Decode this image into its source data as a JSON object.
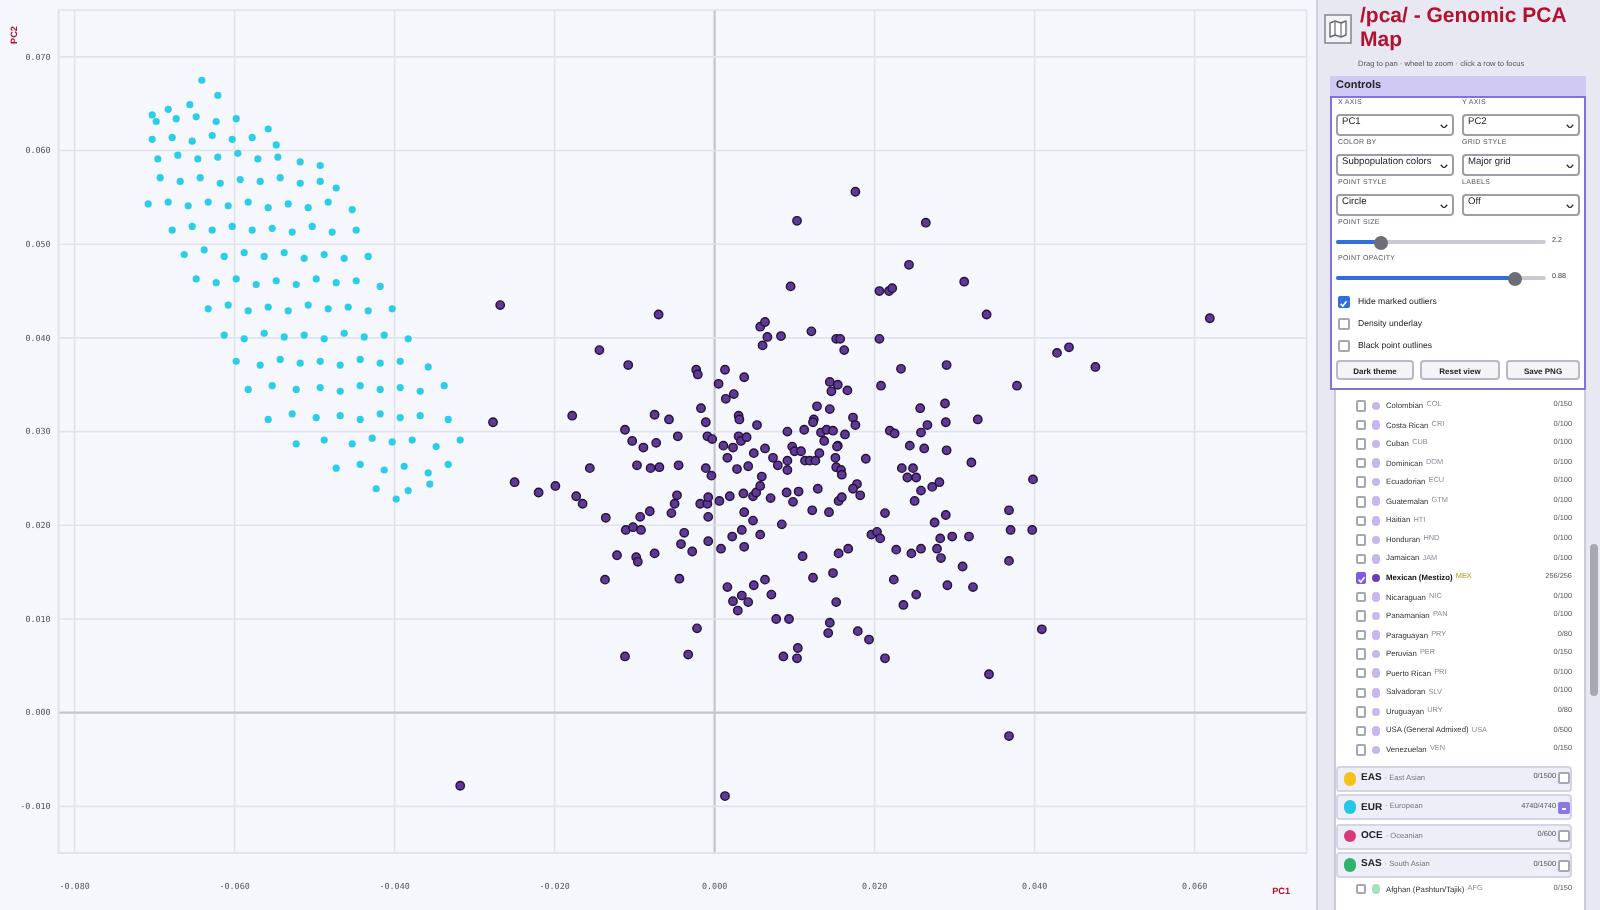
{
  "chart_data": [
    {
      "type": "scatter",
      "xlabel": "PC1",
      "ylabel": "PC2",
      "xlim": [
        -0.082,
        0.074
      ],
      "ylim": [
        -0.015,
        0.075
      ],
      "xticks": [
        {
          "value": -0.08,
          "label": "-0.080"
        },
        {
          "value": -0.06,
          "label": "-0.060"
        },
        {
          "value": -0.04,
          "label": "-0.040"
        },
        {
          "value": -0.02,
          "label": "-0.020"
        },
        {
          "value": 0,
          "label": "0.000"
        },
        {
          "value": 0.02,
          "label": "0.020"
        },
        {
          "value": 0.04,
          "label": "0.040"
        },
        {
          "value": 0.06,
          "label": "0.060"
        }
      ],
      "yticks": [
        {
          "value": -0.01,
          "label": "-0.010"
        },
        {
          "value": 0,
          "label": "0.000"
        },
        {
          "value": 0.01,
          "label": "0.010"
        },
        {
          "value": 0.02,
          "label": "0.020"
        },
        {
          "value": 0.03,
          "label": "0.030"
        },
        {
          "value": 0.04,
          "label": "0.040"
        },
        {
          "value": 0.05,
          "label": "0.050"
        },
        {
          "value": 0.06,
          "label": "0.060"
        },
        {
          "value": 0.07,
          "label": "0.070"
        }
      ],
      "grid": true,
      "marker": "circle",
      "series": [
        {
          "color": "#2ccde8",
          "x": [
            -0.0641,
            -0.0621,
            -0.0683,
            -0.0656,
            -0.0703,
            -0.0698,
            -0.0673,
            -0.0648,
            -0.0623,
            -0.0598,
            -0.0558,
            -0.0703,
            -0.0678,
            -0.0653,
            -0.0628,
            -0.0603,
            -0.0578,
            -0.0548,
            -0.0696,
            -0.0671,
            -0.0646,
            -0.0621,
            -0.0596,
            -0.0571,
            -0.0546,
            -0.0518,
            -0.0493,
            -0.0693,
            -0.0668,
            -0.0643,
            -0.0618,
            -0.0593,
            -0.0568,
            -0.0543,
            -0.0518,
            -0.0493,
            -0.0473,
            -0.0708,
            -0.0683,
            -0.0658,
            -0.0633,
            -0.0608,
            -0.0583,
            -0.0558,
            -0.0533,
            -0.0508,
            -0.0483,
            -0.0453,
            -0.0678,
            -0.0653,
            -0.0628,
            -0.0603,
            -0.0578,
            -0.0553,
            -0.0528,
            -0.0503,
            -0.0478,
            -0.0448,
            -0.0663,
            -0.0638,
            -0.0613,
            -0.0588,
            -0.0563,
            -0.0538,
            -0.0513,
            -0.0488,
            -0.0463,
            -0.0433,
            -0.0648,
            -0.0623,
            -0.0598,
            -0.0573,
            -0.0548,
            -0.0523,
            -0.0498,
            -0.0473,
            -0.0448,
            -0.0418,
            -0.0633,
            -0.0608,
            -0.0583,
            -0.0558,
            -0.0533,
            -0.0508,
            -0.0483,
            -0.0458,
            -0.0433,
            -0.0403,
            -0.0613,
            -0.0588,
            -0.0563,
            -0.0538,
            -0.0513,
            -0.0488,
            -0.0463,
            -0.0438,
            -0.0413,
            -0.0383,
            -0.0598,
            -0.0568,
            -0.0543,
            -0.0518,
            -0.0493,
            -0.0468,
            -0.0443,
            -0.0418,
            -0.0393,
            -0.0358,
            -0.0583,
            -0.0553,
            -0.0523,
            -0.0493,
            -0.0468,
            -0.0443,
            -0.0418,
            -0.0393,
            -0.0368,
            -0.0338,
            -0.0558,
            -0.0528,
            -0.0498,
            -0.0468,
            -0.0443,
            -0.0418,
            -0.0393,
            -0.0368,
            -0.0333,
            -0.0523,
            -0.0488,
            -0.0453,
            -0.0428,
            -0.0403,
            -0.0378,
            -0.0348,
            -0.0318,
            -0.0473,
            -0.0443,
            -0.0413,
            -0.0388,
            -0.0358,
            -0.0333,
            -0.0423,
            -0.0383,
            -0.0356,
            -0.0398
          ],
          "values": [
            0.0675,
            0.0659,
            0.0644,
            0.0649,
            0.0638,
            0.0631,
            0.0634,
            0.0636,
            0.0631,
            0.0634,
            0.0623,
            0.0612,
            0.0614,
            0.061,
            0.0616,
            0.0612,
            0.0614,
            0.0606,
            0.0591,
            0.0595,
            0.0591,
            0.0593,
            0.0597,
            0.0591,
            0.0593,
            0.0588,
            0.0584,
            0.0571,
            0.0567,
            0.0571,
            0.0565,
            0.0569,
            0.0567,
            0.0571,
            0.0565,
            0.0567,
            0.056,
            0.0543,
            0.0545,
            0.0541,
            0.0545,
            0.0541,
            0.0545,
            0.0539,
            0.0543,
            0.0539,
            0.0545,
            0.0537,
            0.0515,
            0.0519,
            0.0515,
            0.0519,
            0.0515,
            0.0517,
            0.0513,
            0.0519,
            0.0513,
            0.0515,
            0.0489,
            0.0494,
            0.0487,
            0.0491,
            0.0487,
            0.0491,
            0.0485,
            0.0489,
            0.0485,
            0.0487,
            0.0463,
            0.0459,
            0.0463,
            0.0457,
            0.0461,
            0.0457,
            0.0463,
            0.0459,
            0.0461,
            0.0455,
            0.0431,
            0.0435,
            0.0429,
            0.0433,
            0.0429,
            0.0435,
            0.0431,
            0.0433,
            0.0429,
            0.0431,
            0.0403,
            0.0399,
            0.0405,
            0.0401,
            0.0403,
            0.0399,
            0.0405,
            0.0401,
            0.0403,
            0.0399,
            0.0375,
            0.0371,
            0.0377,
            0.0373,
            0.0375,
            0.0371,
            0.0377,
            0.0373,
            0.0375,
            0.0369,
            0.0345,
            0.0349,
            0.0345,
            0.0347,
            0.0343,
            0.0349,
            0.0345,
            0.0347,
            0.0343,
            0.0349,
            0.0313,
            0.0319,
            0.0315,
            0.0317,
            0.0313,
            0.0319,
            0.0315,
            0.0317,
            0.0313,
            0.0287,
            0.0291,
            0.0287,
            0.0293,
            0.0289,
            0.0291,
            0.0284,
            0.0291,
            0.0261,
            0.0265,
            0.0259,
            0.0263,
            0.0256,
            0.0265,
            0.0239,
            0.0237,
            0.0244,
            0.0228
          ]
        },
        {
          "color": "#5e3a94",
          "x": [
            0.0176,
            0.0103,
            0.0264,
            0.0243,
            0.0095,
            0.0312,
            0.0206,
            0.0218,
            0.0222,
            0.034,
            -0.0268,
            -0.007,
            0.0619,
            0.0057,
            0.0063,
            0.0066,
            0.0083,
            0.006,
            0.0121,
            0.0152,
            0.0157,
            0.0162,
            0.0206,
            -0.0144,
            -0.0108,
            0.0428,
            0.0443,
            0.0476,
            -0.0023,
            -0.0021,
            0.0013,
            0.0037,
            0.0005,
            0.0024,
            0.0014,
            0.0144,
            0.0154,
            0.0166,
            0.0146,
            0.0233,
            0.0208,
            0.029,
            0.0378,
            -0.0277,
            -0.0178,
            -0.0075,
            -0.0057,
            -0.0017,
            -0.0011,
            0.003,
            0.0031,
            0.0053,
            0.0128,
            0.0144,
            0.0124,
            0.0123,
            0.0173,
            0.0176,
            0.0257,
            0.0288,
            0.0289,
            0.0329,
            0.0266,
            -0.0112,
            -0.0103,
            -0.0089,
            -0.0073,
            -0.0046,
            -0.0009,
            -0.0003,
            0.0011,
            0.0023,
            0.003,
            0.0033,
            0.004,
            0.0049,
            0.0063,
            0.0073,
            0.0091,
            0.0097,
            0.0112,
            0.0133,
            0.014,
            0.0148,
            0.0137,
            0.0163,
            0.0154,
            0.0219,
            0.0225,
            0.0244,
            0.0258,
            0.0262,
            0.029,
            0.0321,
            -0.025,
            -0.022,
            -0.0199,
            -0.0173,
            -0.0165,
            -0.0156,
            -0.0097,
            -0.008,
            -0.0069,
            -0.0045,
            -0.0011,
            -0.0004,
            0.0016,
            0.0028,
            0.0042,
            0.0059,
            0.0079,
            0.0091,
            0.0091,
            0.01,
            0.0108,
            0.0113,
            0.0119,
            0.0126,
            0.0131,
            0.0151,
            0.0153,
            0.0152,
            0.0158,
            0.0159,
            0.0189,
            0.0234,
            0.0241,
            0.0248,
            0.0252,
            0.0281,
            0.0272,
            0.0258,
            0.025,
            0.0398,
            -0.0136,
            -0.0111,
            -0.0102,
            -0.0092,
            -0.0093,
            -0.0081,
            -0.0054,
            -0.005,
            -0.0047,
            -0.0018,
            -0.0009,
            -0.0008,
            -0.0008,
            0.0006,
            0.0019,
            0.0036,
            0.0037,
            0.0048,
            0.0048,
            0.0052,
            0.0057,
            0.007,
            0.0084,
            0.009,
            0.0098,
            0.0105,
            0.0122,
            0.0129,
            0.0143,
            0.0155,
            0.0159,
            0.0178,
            0.0173,
            0.0182,
            0.0213,
            -0.0122,
            -0.0098,
            -0.0096,
            -0.0075,
            -0.0042,
            -0.0038,
            -0.0028,
            -0.0008,
            0.0008,
            0.0022,
            0.0037,
            0.0034,
            0.0057,
            0.011,
            0.0155,
            0.0167,
            0.0196,
            0.0203,
            0.0207,
            0.0227,
            0.0246,
            0.0258,
            0.0275,
            0.0278,
            0.0282,
            0.0283,
            0.0289,
            0.0297,
            0.0318,
            0.031,
            0.0323,
            0.0368,
            0.037,
            0.0368,
            0.0397,
            -0.0137,
            -0.0044,
            0.0016,
            0.0023,
            0.0029,
            0.0034,
            0.0042,
            0.0049,
            0.0063,
            0.0071,
            0.0123,
            0.0148,
            0.0152,
            0.0224,
            0.0236,
            0.0252,
            0.0291,
            -0.0022,
            -0.0033,
            -0.0112,
            0.0077,
            0.0093,
            0.0086,
            0.0104,
            0.0103,
            0.0142,
            0.0144,
            0.0179,
            0.0193,
            0.0213,
            0.0409,
            0.0343,
            0.0368,
            0.0013,
            -0.0318
          ],
          "values": [
            0.0556,
            0.0525,
            0.0523,
            0.0478,
            0.0455,
            0.046,
            0.045,
            0.045,
            0.0453,
            0.0425,
            0.0435,
            0.0425,
            0.0421,
            0.0412,
            0.0417,
            0.0401,
            0.0402,
            0.0392,
            0.0407,
            0.0399,
            0.0399,
            0.0387,
            0.0399,
            0.0387,
            0.0371,
            0.0384,
            0.039,
            0.0369,
            0.0366,
            0.0361,
            0.0366,
            0.0358,
            0.0351,
            0.034,
            0.0335,
            0.0353,
            0.035,
            0.0344,
            0.0343,
            0.0367,
            0.0349,
            0.0371,
            0.0349,
            0.031,
            0.0317,
            0.0318,
            0.0313,
            0.0325,
            0.031,
            0.0317,
            0.0313,
            0.0307,
            0.0327,
            0.0324,
            0.0313,
            0.031,
            0.0315,
            0.0307,
            0.0325,
            0.033,
            0.031,
            0.0313,
            0.0307,
            0.0302,
            0.029,
            0.0283,
            0.0288,
            0.0295,
            0.0295,
            0.0292,
            0.0285,
            0.0283,
            0.0295,
            0.029,
            0.0294,
            0.0277,
            0.0282,
            0.0272,
            0.03,
            0.0284,
            0.0302,
            0.0299,
            0.0302,
            0.0301,
            0.029,
            0.0297,
            0.0285,
            0.0301,
            0.0298,
            0.0285,
            0.0299,
            0.0282,
            0.028,
            0.0267,
            0.0246,
            0.0235,
            0.0242,
            0.0231,
            0.0223,
            0.0261,
            0.0264,
            0.0261,
            0.0262,
            0.0264,
            0.0261,
            0.0253,
            0.0272,
            0.026,
            0.0263,
            0.0252,
            0.0264,
            0.0269,
            0.0259,
            0.0279,
            0.0279,
            0.0269,
            0.0269,
            0.0269,
            0.0277,
            0.0272,
            0.0284,
            0.0262,
            0.0259,
            0.0254,
            0.0271,
            0.0261,
            0.0251,
            0.0261,
            0.0251,
            0.0246,
            0.0241,
            0.0237,
            0.0226,
            0.0249,
            0.0208,
            0.0195,
            0.0198,
            0.0195,
            0.0209,
            0.0215,
            0.0213,
            0.0223,
            0.0232,
            0.0223,
            0.0223,
            0.023,
            0.0209,
            0.0226,
            0.0231,
            0.0234,
            0.0214,
            0.0231,
            0.0205,
            0.0235,
            0.0242,
            0.0229,
            0.0201,
            0.0235,
            0.0225,
            0.0236,
            0.0216,
            0.0239,
            0.0214,
            0.0226,
            0.023,
            0.0244,
            0.0239,
            0.0232,
            0.0213,
            0.0168,
            0.0166,
            0.0161,
            0.017,
            0.018,
            0.0192,
            0.0172,
            0.0183,
            0.0175,
            0.0188,
            0.0177,
            0.0195,
            0.019,
            0.0167,
            0.017,
            0.0175,
            0.019,
            0.0193,
            0.0186,
            0.0174,
            0.017,
            0.0175,
            0.0203,
            0.0175,
            0.0186,
            0.0165,
            0.0211,
            0.0188,
            0.0188,
            0.0156,
            0.0134,
            0.0216,
            0.0195,
            0.0162,
            0.0195,
            0.0142,
            0.0143,
            0.0134,
            0.0119,
            0.0109,
            0.0125,
            0.0118,
            0.0136,
            0.0142,
            0.0126,
            0.0144,
            0.0149,
            0.0118,
            0.0142,
            0.0115,
            0.0126,
            0.0136,
            0.009,
            0.0062,
            0.006,
            0.01,
            0.01,
            0.006,
            0.0069,
            0.0058,
            0.0085,
            0.0096,
            0.0087,
            0.0078,
            0.0058,
            0.0089,
            0.0041,
            -0.0025,
            -0.0089,
            -0.0078
          ]
        }
      ]
    },
    {
      "type": "other",
      "title": "/pca/ - Genomic PCA Map",
      "subtitle": "Drag to pan · wheel to zoom · click a row to focus",
      "annotations": [
        "Controls",
        "X AXIS",
        "PC1",
        "Y AXIS",
        "PC2",
        "COLOR BY",
        "Subpopulation colors",
        "GRID STYLE",
        "Major grid",
        "POINT STYLE",
        "Circle",
        "LABELS",
        "Off",
        "POINT SIZE",
        "2.2",
        "POINT OPACITY",
        "0.88",
        "Hide marked outliers",
        "Density underlay",
        "Black point outlines",
        "Dark theme",
        "Reset view",
        "Save PNG",
        "Colombian",
        "COL",
        "0/150",
        "Costa Rican",
        "CRI",
        "0/100",
        "Cuban",
        "CUB",
        "0/100",
        "Dominican",
        "DOM",
        "0/100",
        "Ecuadorian",
        "ECU",
        "0/100",
        "Guatemalan",
        "GTM",
        "0/100",
        "Haitian",
        "HTI",
        "0/100",
        "Honduran",
        "HND",
        "0/100",
        "Jamaican",
        "JAM",
        "0/100",
        "Mexican (Mestizo)",
        "MEX",
        "256/256",
        "Nicaraguan",
        "NIC",
        "0/100",
        "Panamanian",
        "PAN",
        "0/100",
        "Paraguayan",
        "PRY",
        "0/80",
        "Peruvian",
        "PER",
        "0/150",
        "Puerto Rican",
        "PRI",
        "0/100",
        "Salvadoran",
        "SLV",
        "0/100",
        "Uruguayan",
        "URY",
        "0/80",
        "USA (General Admixed)",
        "USA",
        "0/500",
        "Venezuelan",
        "VEN",
        "0/150",
        "EAS",
        "· East Asian",
        "0/1500",
        "EUR",
        "· European",
        "4740/4740",
        "OCE",
        "· Oceanian",
        "0/600",
        "SAS",
        "· South Asian",
        "0/1500",
        "Afghan (Pashtun/Tajik)",
        "AFG",
        "0/150"
      ]
    }
  ]
}
